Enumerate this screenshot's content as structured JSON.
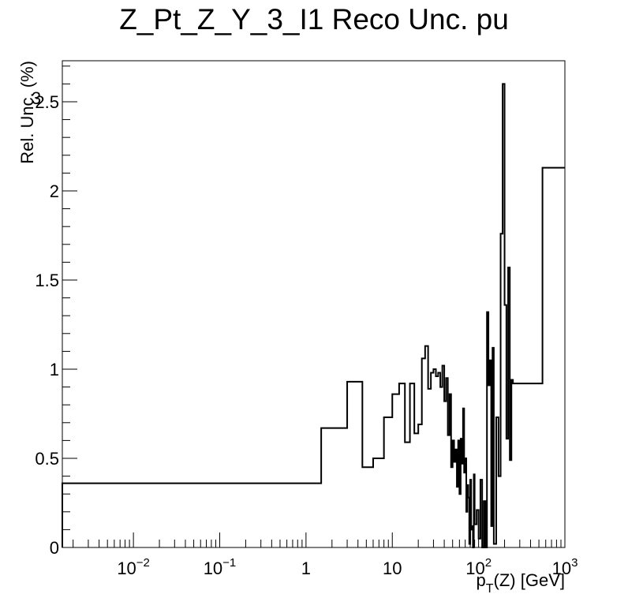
{
  "chart_data": {
    "type": "line",
    "title": "Z_Pt_Z_Y_3_I1 Reco Unc. pu",
    "xlabel_base": "p",
    "xlabel_sub": "T",
    "xlabel_rest": "(Z) [GeV]",
    "ylabel": "Rel. Unc. (%)",
    "x_scale": "log",
    "xlim": [
      0.0015,
      1000
    ],
    "ylim": [
      0,
      2.73
    ],
    "grid": false,
    "legend": "none",
    "line_color": "#000000",
    "x_ticks": [
      {
        "value": 0.01,
        "base": "10",
        "exp": "−2"
      },
      {
        "value": 0.1,
        "base": "10",
        "exp": "−1"
      },
      {
        "value": 1,
        "base": "1",
        "exp": ""
      },
      {
        "value": 10,
        "base": "10",
        "exp": ""
      },
      {
        "value": 100,
        "base": "10",
        "exp": "2"
      },
      {
        "value": 1000,
        "base": "10",
        "exp": "3"
      }
    ],
    "y_ticks": [
      "0",
      "0.5",
      "1",
      "1.5",
      "2",
      "2.5"
    ],
    "y_tick_values": [
      0,
      0.5,
      1,
      1.5,
      2,
      2.5
    ],
    "y_exponent_label": "3",
    "bin_edges": [
      0.0015,
      1.5,
      3,
      4.5,
      6,
      8,
      10,
      12,
      14,
      16,
      18,
      20,
      22,
      24,
      26,
      28,
      30,
      32,
      34,
      36,
      38,
      40,
      42,
      44,
      46,
      48,
      50,
      52,
      54,
      56,
      58,
      60,
      62,
      64,
      66,
      68,
      70,
      72,
      74,
      76,
      78,
      80,
      82,
      84,
      86,
      88,
      90,
      95,
      100,
      105,
      110,
      115,
      120,
      125,
      130,
      135,
      140,
      145,
      150,
      160,
      170,
      180,
      190,
      200,
      210,
      220,
      230,
      240,
      250,
      260,
      270,
      280,
      290,
      300,
      320,
      340,
      360,
      380,
      400,
      420,
      450,
      500,
      550,
      700,
      1000
    ],
    "values": [
      0.36,
      0.67,
      0.93,
      0.45,
      0.5,
      0.73,
      0.86,
      0.92,
      0.59,
      0.92,
      0.64,
      0.69,
      1.06,
      1.13,
      0.89,
      0.98,
      1.0,
      0.96,
      0.98,
      0.9,
      1.02,
      0.82,
      0.95,
      0.63,
      0.86,
      0.45,
      0.6,
      0.48,
      0.55,
      0.34,
      0.6,
      0.3,
      0.61,
      0.47,
      0.78,
      0.42,
      0.5,
      0.2,
      0.35,
      0.28,
      0.02,
      0.38,
      0.1,
      0.12,
      0.0,
      0.41,
      0.13,
      0.21,
      0.05,
      0.38,
      0.0,
      0.26,
      0.0,
      1.32,
      0.91,
      1.05,
      0.12,
      1.12,
      0.02,
      0.73,
      0.4,
      1.76,
      2.6,
      1.36,
      0.61,
      1.57,
      0.49,
      0.94,
      0.92,
      0.92,
      0.92,
      0.92,
      0.92,
      0.92,
      0.92,
      0.92,
      0.92,
      0.92,
      0.92,
      0.92,
      0.92,
      0.92,
      2.13,
      2.13
    ]
  }
}
